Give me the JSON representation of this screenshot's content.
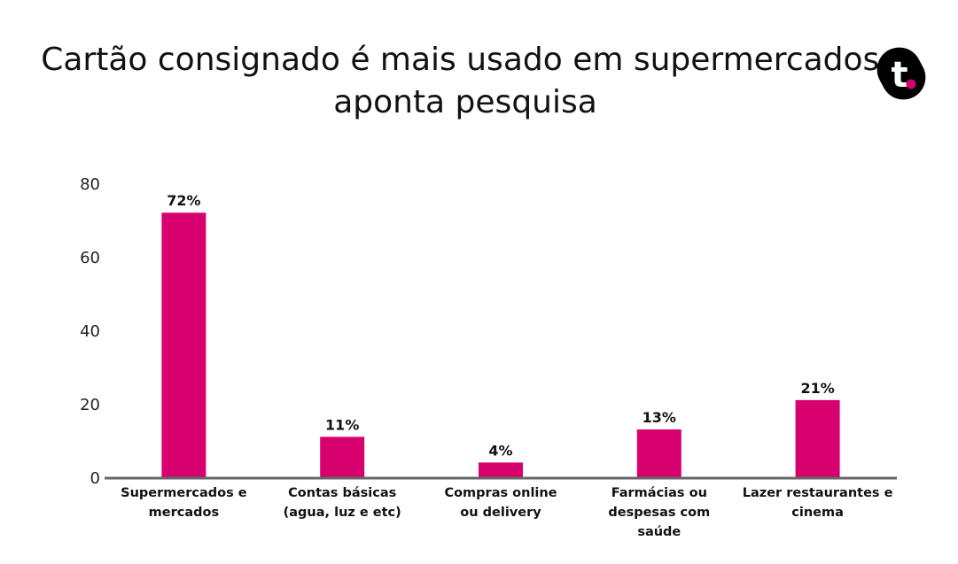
{
  "title_lines": [
    "Cartão consignado é mais usado em supermercados,",
    "aponta pesquisa"
  ],
  "logo": {
    "text": "t",
    "icon": "t-brand-logo",
    "bg_color": "#000000",
    "fg_color": "#ffffff",
    "dot_color": "#d4006e"
  },
  "chart_data": {
    "type": "bar",
    "title": "Cartão consignado é mais usado em supermercados, aponta pesquisa",
    "categories": [
      [
        "Supermercados e",
        "mercados"
      ],
      [
        "Contas básicas",
        "(agua, luz e etc)"
      ],
      [
        "Compras online",
        "ou delivery"
      ],
      [
        "Farmácias ou",
        "despesas com",
        "saúde"
      ],
      [
        "Lazer restaurantes e",
        "cinema"
      ]
    ],
    "values": [
      72,
      11,
      4,
      13,
      21
    ],
    "value_labels": [
      "72%",
      "11%",
      "4%",
      "13%",
      "21%"
    ],
    "yticks": [
      0,
      20,
      40,
      60,
      80
    ],
    "ylim": [
      0,
      80
    ],
    "xlabel": "",
    "ylabel": "",
    "grid": false,
    "bar_color": "#d8006f",
    "axis_color": "#666666"
  }
}
